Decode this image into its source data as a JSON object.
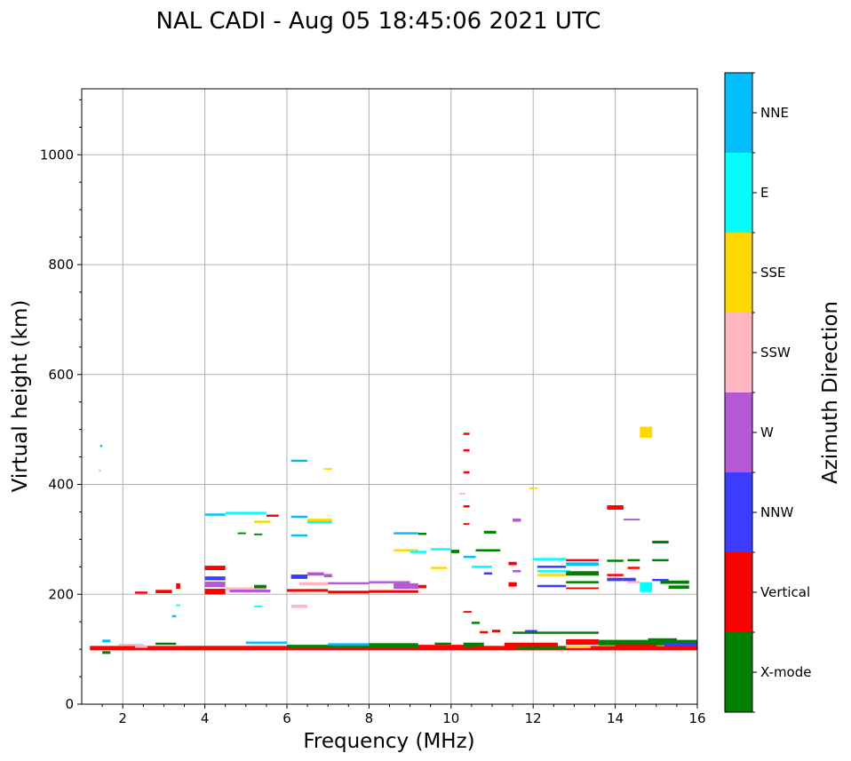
{
  "title": "NAL CADI - Aug 05 18:45:06 2021 UTC",
  "colors": {
    "X-mode": "#008000",
    "Vertical": "#ff0000",
    "NNW": "#3c3cff",
    "W": "#b657d6",
    "SSW": "#ffb6c1",
    "SSE": "#ffd700",
    "E": "#00ffff",
    "NNE": "#00bfff",
    "grid": "#b0b0b0"
  },
  "chart_data": {
    "type": "scatter",
    "title": "NAL CADI - Aug 05 18:45:06 2021 UTC",
    "xlabel": "Frequency (MHz)",
    "ylabel": "Virtual height (km)",
    "xlim": [
      1,
      16
    ],
    "ylim": [
      0,
      1120
    ],
    "xticks": [
      2,
      4,
      6,
      8,
      10,
      12,
      14,
      16
    ],
    "yticks": [
      0,
      200,
      400,
      600,
      800,
      1000
    ],
    "grid": true,
    "colorbar": {
      "label": "Azimuth Direction",
      "categories": [
        "X-mode",
        "Vertical",
        "NNW",
        "W",
        "SSW",
        "SSE",
        "E",
        "NNE"
      ]
    },
    "segments": [
      {
        "f0": 1.2,
        "f1": 16.0,
        "h": 102,
        "dh": 8,
        "c": "Vertical"
      },
      {
        "f0": 1.5,
        "f1": 1.7,
        "h": 94,
        "dh": 5,
        "c": "X-mode"
      },
      {
        "f0": 1.5,
        "f1": 1.7,
        "h": 115,
        "dh": 5,
        "c": "NNE"
      },
      {
        "f0": 1.9,
        "f1": 2.5,
        "h": 108,
        "dh": 4,
        "c": "SSW"
      },
      {
        "f0": 2.3,
        "f1": 2.6,
        "h": 105,
        "dh": 5,
        "c": "SSW"
      },
      {
        "f0": 2.8,
        "f1": 3.3,
        "h": 110,
        "dh": 4,
        "c": "X-mode"
      },
      {
        "f0": 3.5,
        "f1": 6.0,
        "h": 103,
        "dh": 6,
        "c": "Vertical"
      },
      {
        "f0": 5.0,
        "f1": 6.0,
        "h": 112,
        "dh": 4,
        "c": "NNE"
      },
      {
        "f0": 6.0,
        "f1": 8.0,
        "h": 105,
        "dh": 6,
        "c": "X-mode"
      },
      {
        "f0": 7.0,
        "f1": 8.0,
        "h": 109,
        "dh": 4,
        "c": "NNE"
      },
      {
        "f0": 8.0,
        "f1": 9.2,
        "h": 107,
        "dh": 8,
        "c": "X-mode"
      },
      {
        "f0": 9.2,
        "f1": 10.4,
        "h": 105,
        "dh": 6,
        "c": "Vertical"
      },
      {
        "f0": 9.6,
        "f1": 10.0,
        "h": 110,
        "dh": 4,
        "c": "X-mode"
      },
      {
        "f0": 10.3,
        "f1": 10.8,
        "h": 108,
        "dh": 8,
        "c": "X-mode"
      },
      {
        "f0": 10.6,
        "f1": 11.2,
        "h": 103,
        "dh": 6,
        "c": "Vertical"
      },
      {
        "f0": 11.3,
        "f1": 12.6,
        "h": 108,
        "dh": 8,
        "c": "Vertical"
      },
      {
        "f0": 11.6,
        "f1": 12.8,
        "h": 102,
        "dh": 5,
        "c": "X-mode"
      },
      {
        "f0": 12.8,
        "f1": 13.6,
        "h": 113,
        "dh": 10,
        "c": "Vertical"
      },
      {
        "f0": 12.8,
        "f1": 13.4,
        "h": 104,
        "dh": 4,
        "c": "SSE"
      },
      {
        "f0": 13.6,
        "f1": 16.0,
        "h": 112,
        "dh": 10,
        "c": "X-mode"
      },
      {
        "f0": 14.0,
        "f1": 15.0,
        "h": 105,
        "dh": 6,
        "c": "Vertical"
      },
      {
        "f0": 14.8,
        "f1": 15.5,
        "h": 118,
        "dh": 4,
        "c": "X-mode"
      },
      {
        "f0": 15.2,
        "f1": 16.0,
        "h": 108,
        "dh": 6,
        "c": "NNW"
      },
      {
        "f0": 11.5,
        "f1": 13.6,
        "h": 130,
        "dh": 4,
        "c": "X-mode"
      },
      {
        "f0": 11.8,
        "f1": 12.1,
        "h": 133,
        "dh": 4,
        "c": "NNW"
      },
      {
        "f0": 10.5,
        "f1": 10.7,
        "h": 148,
        "dh": 4,
        "c": "X-mode"
      },
      {
        "f0": 10.3,
        "f1": 10.5,
        "h": 168,
        "dh": 3,
        "c": "Vertical"
      },
      {
        "f0": 11.0,
        "f1": 11.2,
        "h": 133,
        "dh": 5,
        "c": "Vertical"
      },
      {
        "f0": 10.7,
        "f1": 10.9,
        "h": 131,
        "dh": 4,
        "c": "Vertical"
      },
      {
        "f0": 4.0,
        "f1": 4.5,
        "h": 205,
        "dh": 10,
        "c": "Vertical"
      },
      {
        "f0": 4.0,
        "f1": 4.5,
        "h": 218,
        "dh": 10,
        "c": "W"
      },
      {
        "f0": 4.0,
        "f1": 4.5,
        "h": 229,
        "dh": 7,
        "c": "NNW"
      },
      {
        "f0": 4.0,
        "f1": 4.5,
        "h": 248,
        "dh": 8,
        "c": "Vertical"
      },
      {
        "f0": 4.5,
        "f1": 5.5,
        "h": 210,
        "dh": 5,
        "c": "SSW"
      },
      {
        "f0": 4.6,
        "f1": 5.6,
        "h": 206,
        "dh": 5,
        "c": "W"
      },
      {
        "f0": 5.2,
        "f1": 5.5,
        "h": 214,
        "dh": 6,
        "c": "X-mode"
      },
      {
        "f0": 6.0,
        "f1": 7.0,
        "h": 207,
        "dh": 5,
        "c": "Vertical"
      },
      {
        "f0": 6.1,
        "f1": 6.5,
        "h": 232,
        "dh": 8,
        "c": "NNW"
      },
      {
        "f0": 6.5,
        "f1": 6.9,
        "h": 237,
        "dh": 6,
        "c": "W"
      },
      {
        "f0": 6.3,
        "f1": 7.0,
        "h": 219,
        "dh": 6,
        "c": "SSW"
      },
      {
        "f0": 6.9,
        "f1": 7.1,
        "h": 234,
        "dh": 6,
        "c": "W"
      },
      {
        "f0": 7.0,
        "f1": 8.0,
        "h": 204,
        "dh": 5,
        "c": "Vertical"
      },
      {
        "f0": 7.0,
        "f1": 8.0,
        "h": 220,
        "dh": 4,
        "c": "W"
      },
      {
        "f0": 8.0,
        "f1": 9.2,
        "h": 205,
        "dh": 5,
        "c": "Vertical"
      },
      {
        "f0": 8.6,
        "f1": 9.2,
        "h": 215,
        "dh": 10,
        "c": "W"
      },
      {
        "f0": 8.0,
        "f1": 9.0,
        "h": 222,
        "dh": 4,
        "c": "W"
      },
      {
        "f0": 9.2,
        "f1": 9.4,
        "h": 214,
        "dh": 6,
        "c": "Vertical"
      },
      {
        "f0": 2.3,
        "f1": 2.6,
        "h": 203,
        "dh": 4,
        "c": "Vertical"
      },
      {
        "f0": 2.8,
        "f1": 3.2,
        "h": 205,
        "dh": 6,
        "c": "Vertical"
      },
      {
        "f0": 3.3,
        "f1": 3.4,
        "h": 215,
        "dh": 10,
        "c": "Vertical"
      },
      {
        "f0": 4.0,
        "f1": 4.5,
        "h": 345,
        "dh": 4,
        "c": "NNE"
      },
      {
        "f0": 4.5,
        "f1": 5.5,
        "h": 348,
        "dh": 4,
        "c": "E"
      },
      {
        "f0": 5.5,
        "f1": 5.8,
        "h": 343,
        "dh": 4,
        "c": "Vertical"
      },
      {
        "f0": 5.2,
        "f1": 5.6,
        "h": 332,
        "dh": 4,
        "c": "SSE"
      },
      {
        "f0": 4.8,
        "f1": 5.0,
        "h": 311,
        "dh": 3,
        "c": "X-mode"
      },
      {
        "f0": 5.2,
        "f1": 5.4,
        "h": 309,
        "dh": 3,
        "c": "X-mode"
      },
      {
        "f0": 6.1,
        "f1": 6.5,
        "h": 307,
        "dh": 4,
        "c": "NNE"
      },
      {
        "f0": 6.1,
        "f1": 6.5,
        "h": 341,
        "dh": 4,
        "c": "NNE"
      },
      {
        "f0": 6.5,
        "f1": 7.1,
        "h": 335,
        "dh": 5,
        "c": "SSE"
      },
      {
        "f0": 6.5,
        "f1": 7.1,
        "h": 331,
        "dh": 4,
        "c": "E"
      },
      {
        "f0": 6.1,
        "f1": 6.5,
        "h": 443,
        "dh": 4,
        "c": "NNE"
      },
      {
        "f0": 6.9,
        "f1": 7.1,
        "h": 428,
        "dh": 3,
        "c": "SSE"
      },
      {
        "f0": 8.6,
        "f1": 9.2,
        "h": 311,
        "dh": 4,
        "c": "NNE"
      },
      {
        "f0": 9.2,
        "f1": 9.4,
        "h": 310,
        "dh": 4,
        "c": "X-mode"
      },
      {
        "f0": 8.6,
        "f1": 9.2,
        "h": 280,
        "dh": 4,
        "c": "SSE"
      },
      {
        "f0": 9.0,
        "f1": 9.4,
        "h": 277,
        "dh": 4,
        "c": "E"
      },
      {
        "f0": 9.5,
        "f1": 10.0,
        "h": 282,
        "dh": 4,
        "c": "E"
      },
      {
        "f0": 9.5,
        "f1": 9.9,
        "h": 248,
        "dh": 4,
        "c": "SSE"
      },
      {
        "f0": 10.0,
        "f1": 10.2,
        "h": 278,
        "dh": 6,
        "c": "X-mode"
      },
      {
        "f0": 10.3,
        "f1": 10.6,
        "h": 268,
        "dh": 4,
        "c": "NNE"
      },
      {
        "f0": 10.6,
        "f1": 11.2,
        "h": 280,
        "dh": 4,
        "c": "X-mode"
      },
      {
        "f0": 10.8,
        "f1": 11.1,
        "h": 313,
        "dh": 5,
        "c": "X-mode"
      },
      {
        "f0": 10.8,
        "f1": 11.0,
        "h": 238,
        "dh": 4,
        "c": "NNW"
      },
      {
        "f0": 10.5,
        "f1": 11.0,
        "h": 250,
        "dh": 4,
        "c": "E"
      },
      {
        "f0": 11.4,
        "f1": 11.6,
        "h": 256,
        "dh": 6,
        "c": "Vertical"
      },
      {
        "f0": 11.4,
        "f1": 11.6,
        "h": 218,
        "dh": 8,
        "c": "Vertical"
      },
      {
        "f0": 11.5,
        "f1": 11.7,
        "h": 242,
        "dh": 4,
        "c": "W"
      },
      {
        "f0": 11.5,
        "f1": 11.7,
        "h": 335,
        "dh": 6,
        "c": "W"
      },
      {
        "f0": 12.0,
        "f1": 12.8,
        "h": 264,
        "dh": 4,
        "c": "E"
      },
      {
        "f0": 12.1,
        "f1": 12.8,
        "h": 250,
        "dh": 4,
        "c": "NNW"
      },
      {
        "f0": 12.1,
        "f1": 12.9,
        "h": 242,
        "dh": 4,
        "c": "E"
      },
      {
        "f0": 12.1,
        "f1": 12.8,
        "h": 235,
        "dh": 4,
        "c": "SSE"
      },
      {
        "f0": 12.1,
        "f1": 12.8,
        "h": 215,
        "dh": 4,
        "c": "NNW"
      },
      {
        "f0": 12.8,
        "f1": 13.6,
        "h": 262,
        "dh": 4,
        "c": "Vertical"
      },
      {
        "f0": 12.8,
        "f1": 13.6,
        "h": 255,
        "dh": 6,
        "c": "NNE"
      },
      {
        "f0": 12.8,
        "f1": 13.6,
        "h": 238,
        "dh": 8,
        "c": "X-mode"
      },
      {
        "f0": 12.8,
        "f1": 13.6,
        "h": 222,
        "dh": 4,
        "c": "X-mode"
      },
      {
        "f0": 12.8,
        "f1": 13.6,
        "h": 211,
        "dh": 3,
        "c": "Vertical"
      },
      {
        "f0": 13.8,
        "f1": 14.2,
        "h": 358,
        "dh": 8,
        "c": "Vertical"
      },
      {
        "f0": 14.2,
        "f1": 14.6,
        "h": 336,
        "dh": 3,
        "c": "W"
      },
      {
        "f0": 14.6,
        "f1": 14.9,
        "h": 495,
        "dh": 20,
        "c": "SSE"
      },
      {
        "f0": 14.6,
        "f1": 14.9,
        "h": 213,
        "dh": 18,
        "c": "E"
      },
      {
        "f0": 13.8,
        "f1": 14.2,
        "h": 261,
        "dh": 4,
        "c": "X-mode"
      },
      {
        "f0": 13.8,
        "f1": 14.2,
        "h": 235,
        "dh": 4,
        "c": "Vertical"
      },
      {
        "f0": 13.8,
        "f1": 14.2,
        "h": 227,
        "dh": 6,
        "c": "NNW"
      },
      {
        "f0": 14.2,
        "f1": 14.5,
        "h": 227,
        "dh": 6,
        "c": "NNW"
      },
      {
        "f0": 14.3,
        "f1": 14.6,
        "h": 222,
        "dh": 4,
        "c": "SSW"
      },
      {
        "f0": 14.3,
        "f1": 14.6,
        "h": 248,
        "dh": 4,
        "c": "Vertical"
      },
      {
        "f0": 14.3,
        "f1": 14.6,
        "h": 262,
        "dh": 4,
        "c": "X-mode"
      },
      {
        "f0": 14.9,
        "f1": 15.3,
        "h": 295,
        "dh": 5,
        "c": "X-mode"
      },
      {
        "f0": 14.9,
        "f1": 15.3,
        "h": 262,
        "dh": 4,
        "c": "X-mode"
      },
      {
        "f0": 14.9,
        "f1": 15.3,
        "h": 226,
        "dh": 4,
        "c": "NNW"
      },
      {
        "f0": 15.1,
        "f1": 15.8,
        "h": 222,
        "dh": 6,
        "c": "X-mode"
      },
      {
        "f0": 15.3,
        "f1": 15.8,
        "h": 213,
        "dh": 6,
        "c": "X-mode"
      },
      {
        "f0": 10.3,
        "f1": 10.45,
        "h": 492,
        "dh": 4,
        "c": "Vertical"
      },
      {
        "f0": 10.3,
        "f1": 10.45,
        "h": 462,
        "dh": 4,
        "c": "Vertical"
      },
      {
        "f0": 10.3,
        "f1": 10.45,
        "h": 422,
        "dh": 4,
        "c": "Vertical"
      },
      {
        "f0": 10.2,
        "f1": 10.35,
        "h": 383,
        "dh": 3,
        "c": "SSW"
      },
      {
        "f0": 10.3,
        "f1": 10.45,
        "h": 360,
        "dh": 4,
        "c": "Vertical"
      },
      {
        "f0": 10.3,
        "f1": 10.45,
        "h": 328,
        "dh": 3,
        "c": "Vertical"
      },
      {
        "f0": 1.45,
        "f1": 1.5,
        "h": 470,
        "dh": 4,
        "c": "NNE"
      },
      {
        "f0": 1.42,
        "f1": 1.47,
        "h": 425,
        "dh": 4,
        "c": "SSW"
      },
      {
        "f0": 3.3,
        "f1": 3.4,
        "h": 180,
        "dh": 3,
        "c": "E"
      },
      {
        "f0": 3.2,
        "f1": 3.3,
        "h": 160,
        "dh": 4,
        "c": "NNE"
      },
      {
        "f0": 5.2,
        "f1": 5.4,
        "h": 178,
        "dh": 3,
        "c": "E"
      },
      {
        "f0": 6.1,
        "f1": 6.5,
        "h": 178,
        "dh": 6,
        "c": "SSW"
      },
      {
        "f0": 11.9,
        "f1": 12.1,
        "h": 393,
        "dh": 3,
        "c": "SSE"
      }
    ]
  }
}
